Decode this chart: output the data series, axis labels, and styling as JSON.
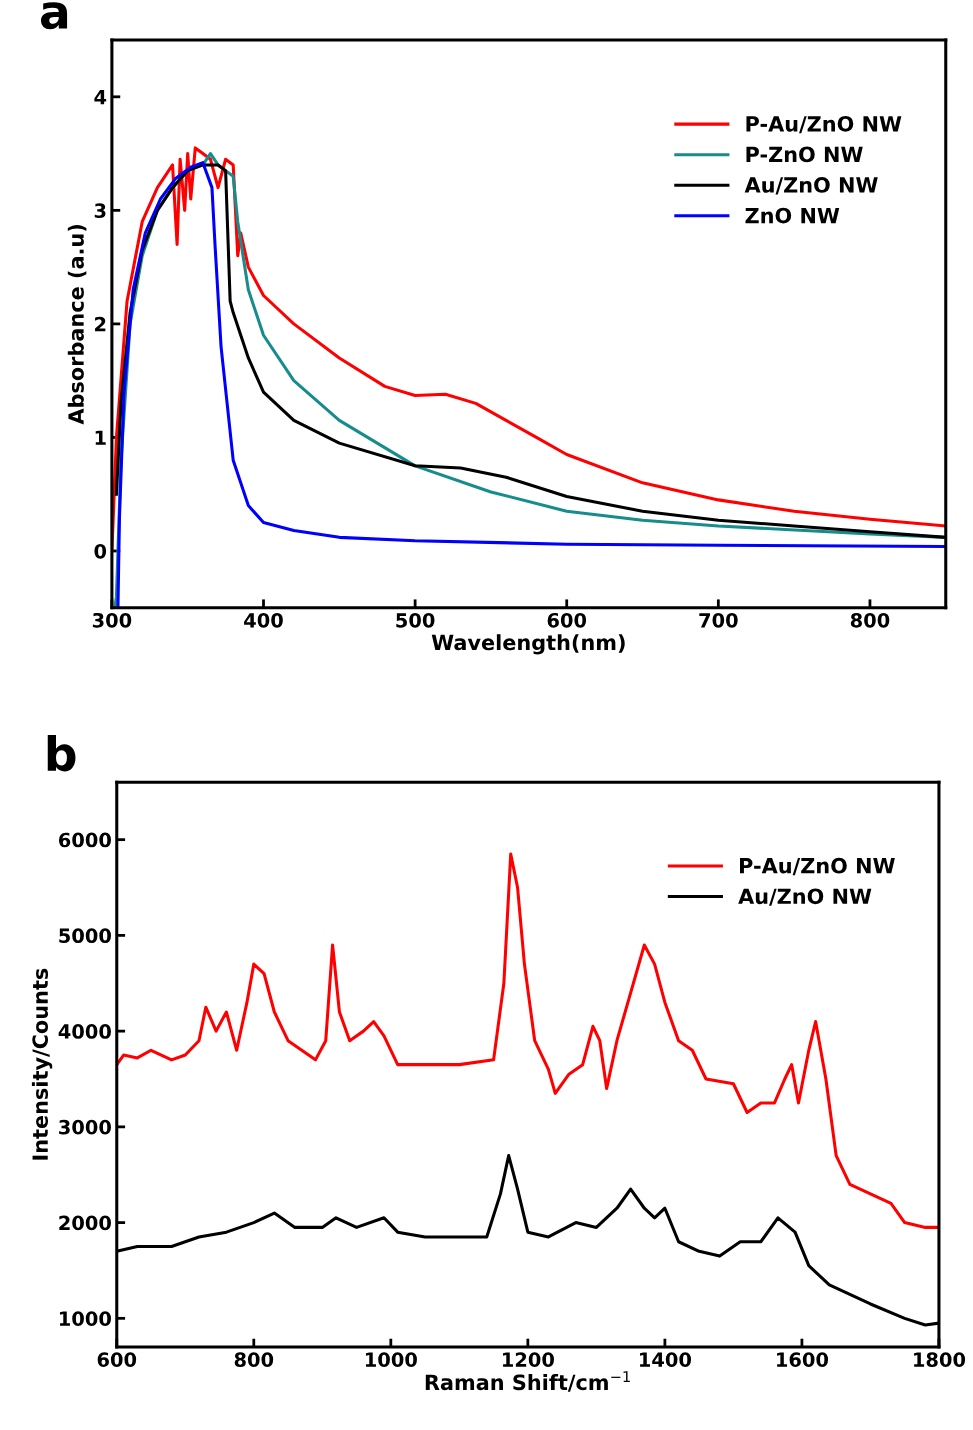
{
  "chart_data": [
    {
      "type": "line",
      "xlabel": "Wavelength(nm)",
      "ylabel": "Absorbance (a.u)",
      "annotations": [
        "a"
      ],
      "xlim": [
        300,
        850
      ],
      "ylim": [
        -0.5,
        4.5
      ],
      "xticks": [
        300,
        400,
        500,
        600,
        700,
        800
      ],
      "yticks": [
        0,
        1,
        2,
        3,
        4
      ],
      "legend": "top right",
      "grid": false,
      "series": [
        {
          "name": "P-Au/ZnO NW",
          "color": "#ff0000",
          "x": [
            300,
            303,
            310,
            320,
            330,
            340,
            343,
            345,
            348,
            350,
            352,
            355,
            360,
            365,
            370,
            375,
            380,
            383,
            385,
            390,
            400,
            420,
            450,
            480,
            500,
            520,
            540,
            560,
            580,
            600,
            650,
            700,
            750,
            800,
            850
          ],
          "values": [
            0,
            1.0,
            2.2,
            2.9,
            3.2,
            3.4,
            2.7,
            3.45,
            3.0,
            3.5,
            3.1,
            3.55,
            3.5,
            3.45,
            3.2,
            3.45,
            3.4,
            2.6,
            2.8,
            2.5,
            2.25,
            2.0,
            1.7,
            1.45,
            1.37,
            1.38,
            1.3,
            1.15,
            1.0,
            0.85,
            0.6,
            0.45,
            0.35,
            0.28,
            0.22
          ]
        },
        {
          "name": "P-ZnO NW",
          "color": "#168c8c",
          "x": [
            302,
            303,
            306,
            312,
            320,
            330,
            340,
            350,
            360,
            365,
            370,
            375,
            380,
            383,
            390,
            400,
            420,
            450,
            500,
            550,
            600,
            650,
            700,
            800,
            850
          ],
          "values": [
            -0.5,
            -0.4,
            0.8,
            2.0,
            2.6,
            3.0,
            3.2,
            3.35,
            3.4,
            3.5,
            3.4,
            3.35,
            3.3,
            2.9,
            2.3,
            1.9,
            1.5,
            1.15,
            0.75,
            0.52,
            0.35,
            0.27,
            0.22,
            0.15,
            0.12
          ]
        },
        {
          "name": "Au/ZnO NW",
          "color": "#000000",
          "x": [
            303,
            306,
            312,
            320,
            330,
            340,
            350,
            360,
            370,
            375,
            378,
            380,
            390,
            400,
            420,
            450,
            500,
            530,
            560,
            600,
            650,
            700,
            750,
            800,
            850
          ],
          "values": [
            0.5,
            1.3,
            2.1,
            2.65,
            3.0,
            3.2,
            3.35,
            3.4,
            3.4,
            3.35,
            2.2,
            2.1,
            1.7,
            1.4,
            1.15,
            0.95,
            0.75,
            0.73,
            0.65,
            0.48,
            0.35,
            0.27,
            0.22,
            0.17,
            0.12
          ]
        },
        {
          "name": "ZnO NW",
          "color": "#0000ff",
          "x": [
            304,
            305,
            308,
            314,
            322,
            332,
            342,
            352,
            360,
            366,
            368,
            372,
            380,
            390,
            400,
            420,
            450,
            500,
            600,
            700,
            850
          ],
          "values": [
            -0.5,
            0.3,
            1.4,
            2.3,
            2.8,
            3.1,
            3.28,
            3.38,
            3.42,
            3.2,
            2.7,
            1.8,
            0.8,
            0.4,
            0.25,
            0.18,
            0.12,
            0.09,
            0.06,
            0.05,
            0.04
          ]
        }
      ]
    },
    {
      "type": "line",
      "xlabel": "Raman Shift/cm$^{−1}$",
      "ylabel": "Intensity/Counts",
      "annotations": [
        "b"
      ],
      "xlim": [
        600,
        1800
      ],
      "ylim": [
        700,
        6600
      ],
      "xticks": [
        600,
        800,
        1000,
        1200,
        1400,
        1600,
        1800
      ],
      "yticks": [
        1000,
        2000,
        3000,
        4000,
        5000,
        6000
      ],
      "legend": "top right",
      "grid": false,
      "series": [
        {
          "name": "P-Au/ZnO NW",
          "color": "#ff0000",
          "x": [
            600,
            610,
            630,
            650,
            680,
            700,
            720,
            730,
            745,
            760,
            775,
            790,
            800,
            815,
            830,
            850,
            870,
            890,
            905,
            915,
            925,
            940,
            960,
            975,
            990,
            1010,
            1050,
            1100,
            1150,
            1165,
            1175,
            1185,
            1195,
            1210,
            1230,
            1240,
            1260,
            1280,
            1295,
            1305,
            1315,
            1330,
            1350,
            1370,
            1385,
            1400,
            1420,
            1440,
            1460,
            1500,
            1520,
            1540,
            1560,
            1575,
            1585,
            1595,
            1610,
            1620,
            1635,
            1650,
            1670,
            1700,
            1730,
            1750,
            1780,
            1800
          ],
          "values": [
            3650,
            3750,
            3720,
            3800,
            3700,
            3750,
            3900,
            4250,
            4000,
            4200,
            3800,
            4300,
            4700,
            4600,
            4200,
            3900,
            3800,
            3700,
            3900,
            4900,
            4200,
            3900,
            4000,
            4100,
            3950,
            3650,
            3650,
            3650,
            3700,
            4500,
            5850,
            5500,
            4700,
            3900,
            3600,
            3350,
            3550,
            3650,
            4050,
            3900,
            3400,
            3900,
            4400,
            4900,
            4700,
            4300,
            3900,
            3800,
            3500,
            3450,
            3150,
            3250,
            3250,
            3500,
            3650,
            3250,
            3800,
            4100,
            3500,
            2700,
            2400,
            2300,
            2200,
            2000,
            1950,
            1950
          ]
        },
        {
          "name": "Au/ZnO NW",
          "color": "#000000",
          "x": [
            600,
            630,
            680,
            720,
            760,
            800,
            830,
            860,
            900,
            920,
            950,
            990,
            1010,
            1050,
            1100,
            1140,
            1160,
            1172,
            1185,
            1200,
            1230,
            1270,
            1300,
            1330,
            1350,
            1370,
            1385,
            1400,
            1420,
            1450,
            1480,
            1510,
            1540,
            1565,
            1590,
            1610,
            1640,
            1700,
            1750,
            1780,
            1800
          ],
          "values": [
            1700,
            1750,
            1750,
            1850,
            1900,
            2000,
            2100,
            1950,
            1950,
            2050,
            1950,
            2050,
            1900,
            1850,
            1850,
            1850,
            2300,
            2700,
            2350,
            1900,
            1850,
            2000,
            1950,
            2150,
            2350,
            2150,
            2050,
            2150,
            1800,
            1700,
            1650,
            1800,
            1800,
            2050,
            1900,
            1550,
            1350,
            1150,
            1000,
            930,
            950
          ]
        }
      ]
    }
  ]
}
